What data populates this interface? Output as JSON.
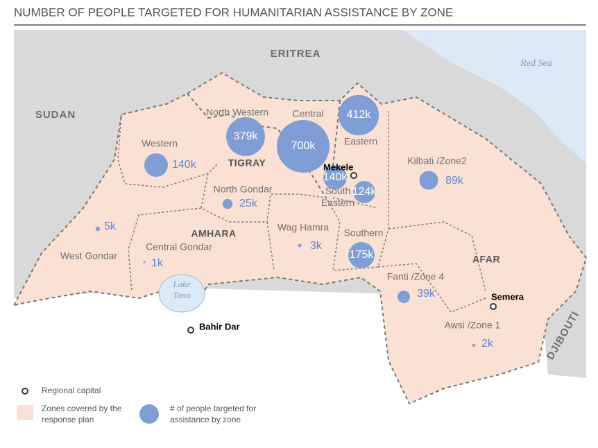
{
  "title": "NUMBER OF PEOPLE TARGETED FOR HUMANITARIAN ASSISTANCE BY ZONE",
  "countries": [
    "ERITREA",
    "SUDAN",
    "DJIBOUTI"
  ],
  "water": [
    "Red Sea",
    "Lake Tana"
  ],
  "regions": [
    "TIGRAY",
    "AMHARA",
    "AFAR"
  ],
  "capitals": [
    "Mekele",
    "Bahir Dar",
    "Semera"
  ],
  "bubble_color": "#7f9ed6",
  "zones": [
    {
      "name": "Western",
      "value": 140000,
      "value_label": "140k"
    },
    {
      "name": "North Western",
      "value": 379000,
      "value_label": "379k"
    },
    {
      "name": "Central",
      "value": 700000,
      "value_label": "700k"
    },
    {
      "name": "Eastern",
      "value": 412000,
      "value_label": "412k"
    },
    {
      "name": null,
      "value": 140000,
      "value_label": "140k"
    },
    {
      "name": "South Eastern",
      "value": 124000,
      "value_label": "124k"
    },
    {
      "name": "Southern",
      "value": 175000,
      "value_label": "175k"
    },
    {
      "name": "Kilbati /Zone2",
      "value": 89000,
      "value_label": "89k"
    },
    {
      "name": "North Gondar",
      "value": 25000,
      "value_label": "25k"
    },
    {
      "name": "West Gondar",
      "value": 5000,
      "value_label": "5k"
    },
    {
      "name": "Central Gondar",
      "value": 1000,
      "value_label": "1k"
    },
    {
      "name": "Wag Hamra",
      "value": 3000,
      "value_label": "3k"
    },
    {
      "name": "Fanti /Zone 4",
      "value": 39000,
      "value_label": "39k"
    },
    {
      "name": "Awsi /Zone 1",
      "value": 2000,
      "value_label": "2k"
    }
  ],
  "legend": {
    "capital": "Regional capital",
    "zones": "Zones covered by the response plan",
    "bubble": "# of people targeted for assistance by zone"
  }
}
